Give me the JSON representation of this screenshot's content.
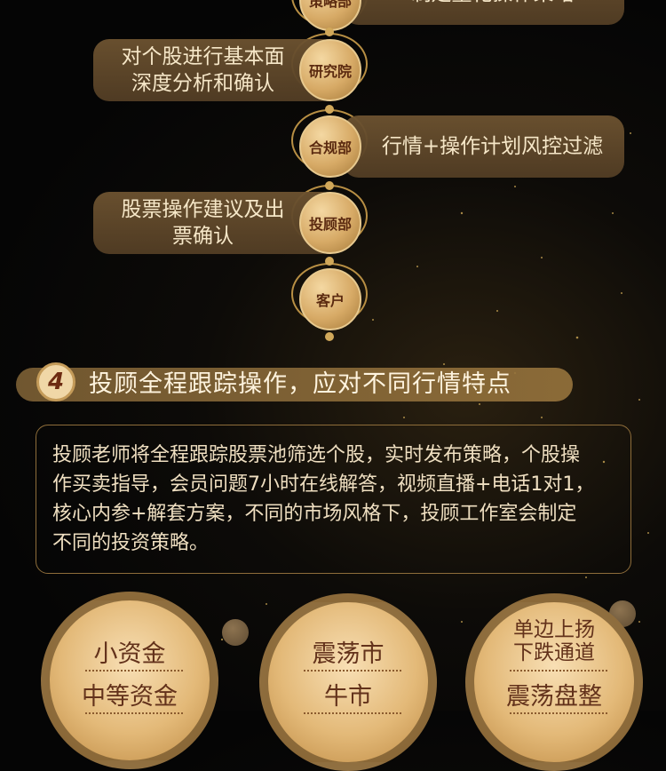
{
  "flow": {
    "top_badge": "策略部",
    "top_text": "制定量化操作策略",
    "step2_badge": "研究院",
    "step2_text_line1": "对个股进行基本面",
    "step2_text_line2": "深度分析和确认",
    "step3_badge": "合规部",
    "step3_text": "行情+操作计划风控过滤",
    "step4_badge": "投顾部",
    "step4_text_line1": "股票操作建议及出",
    "step4_text_line2": "票确认",
    "step5_badge": "客户"
  },
  "section4": {
    "number": "4",
    "title": "投顾全程跟踪操作，应对不同行情特点"
  },
  "description": {
    "line1": "投顾老师将全程跟踪股票池筛选个股，实时发布策略，个股操",
    "line2": "作买卖指导，会员问题7小时在线解答，视频直播+电话1对1，",
    "line3": "核心内参+解套方案，不同的市场风格下，投顾工作室会制定",
    "line4": "不同的投资策略。"
  },
  "circles": [
    {
      "line1": "小资金",
      "line2": "中等资金"
    },
    {
      "line1": "震荡市",
      "line2": "牛市"
    },
    {
      "line1a": "单边上扬",
      "line1b": "下跌通道",
      "line2": "震荡盘整"
    }
  ]
}
